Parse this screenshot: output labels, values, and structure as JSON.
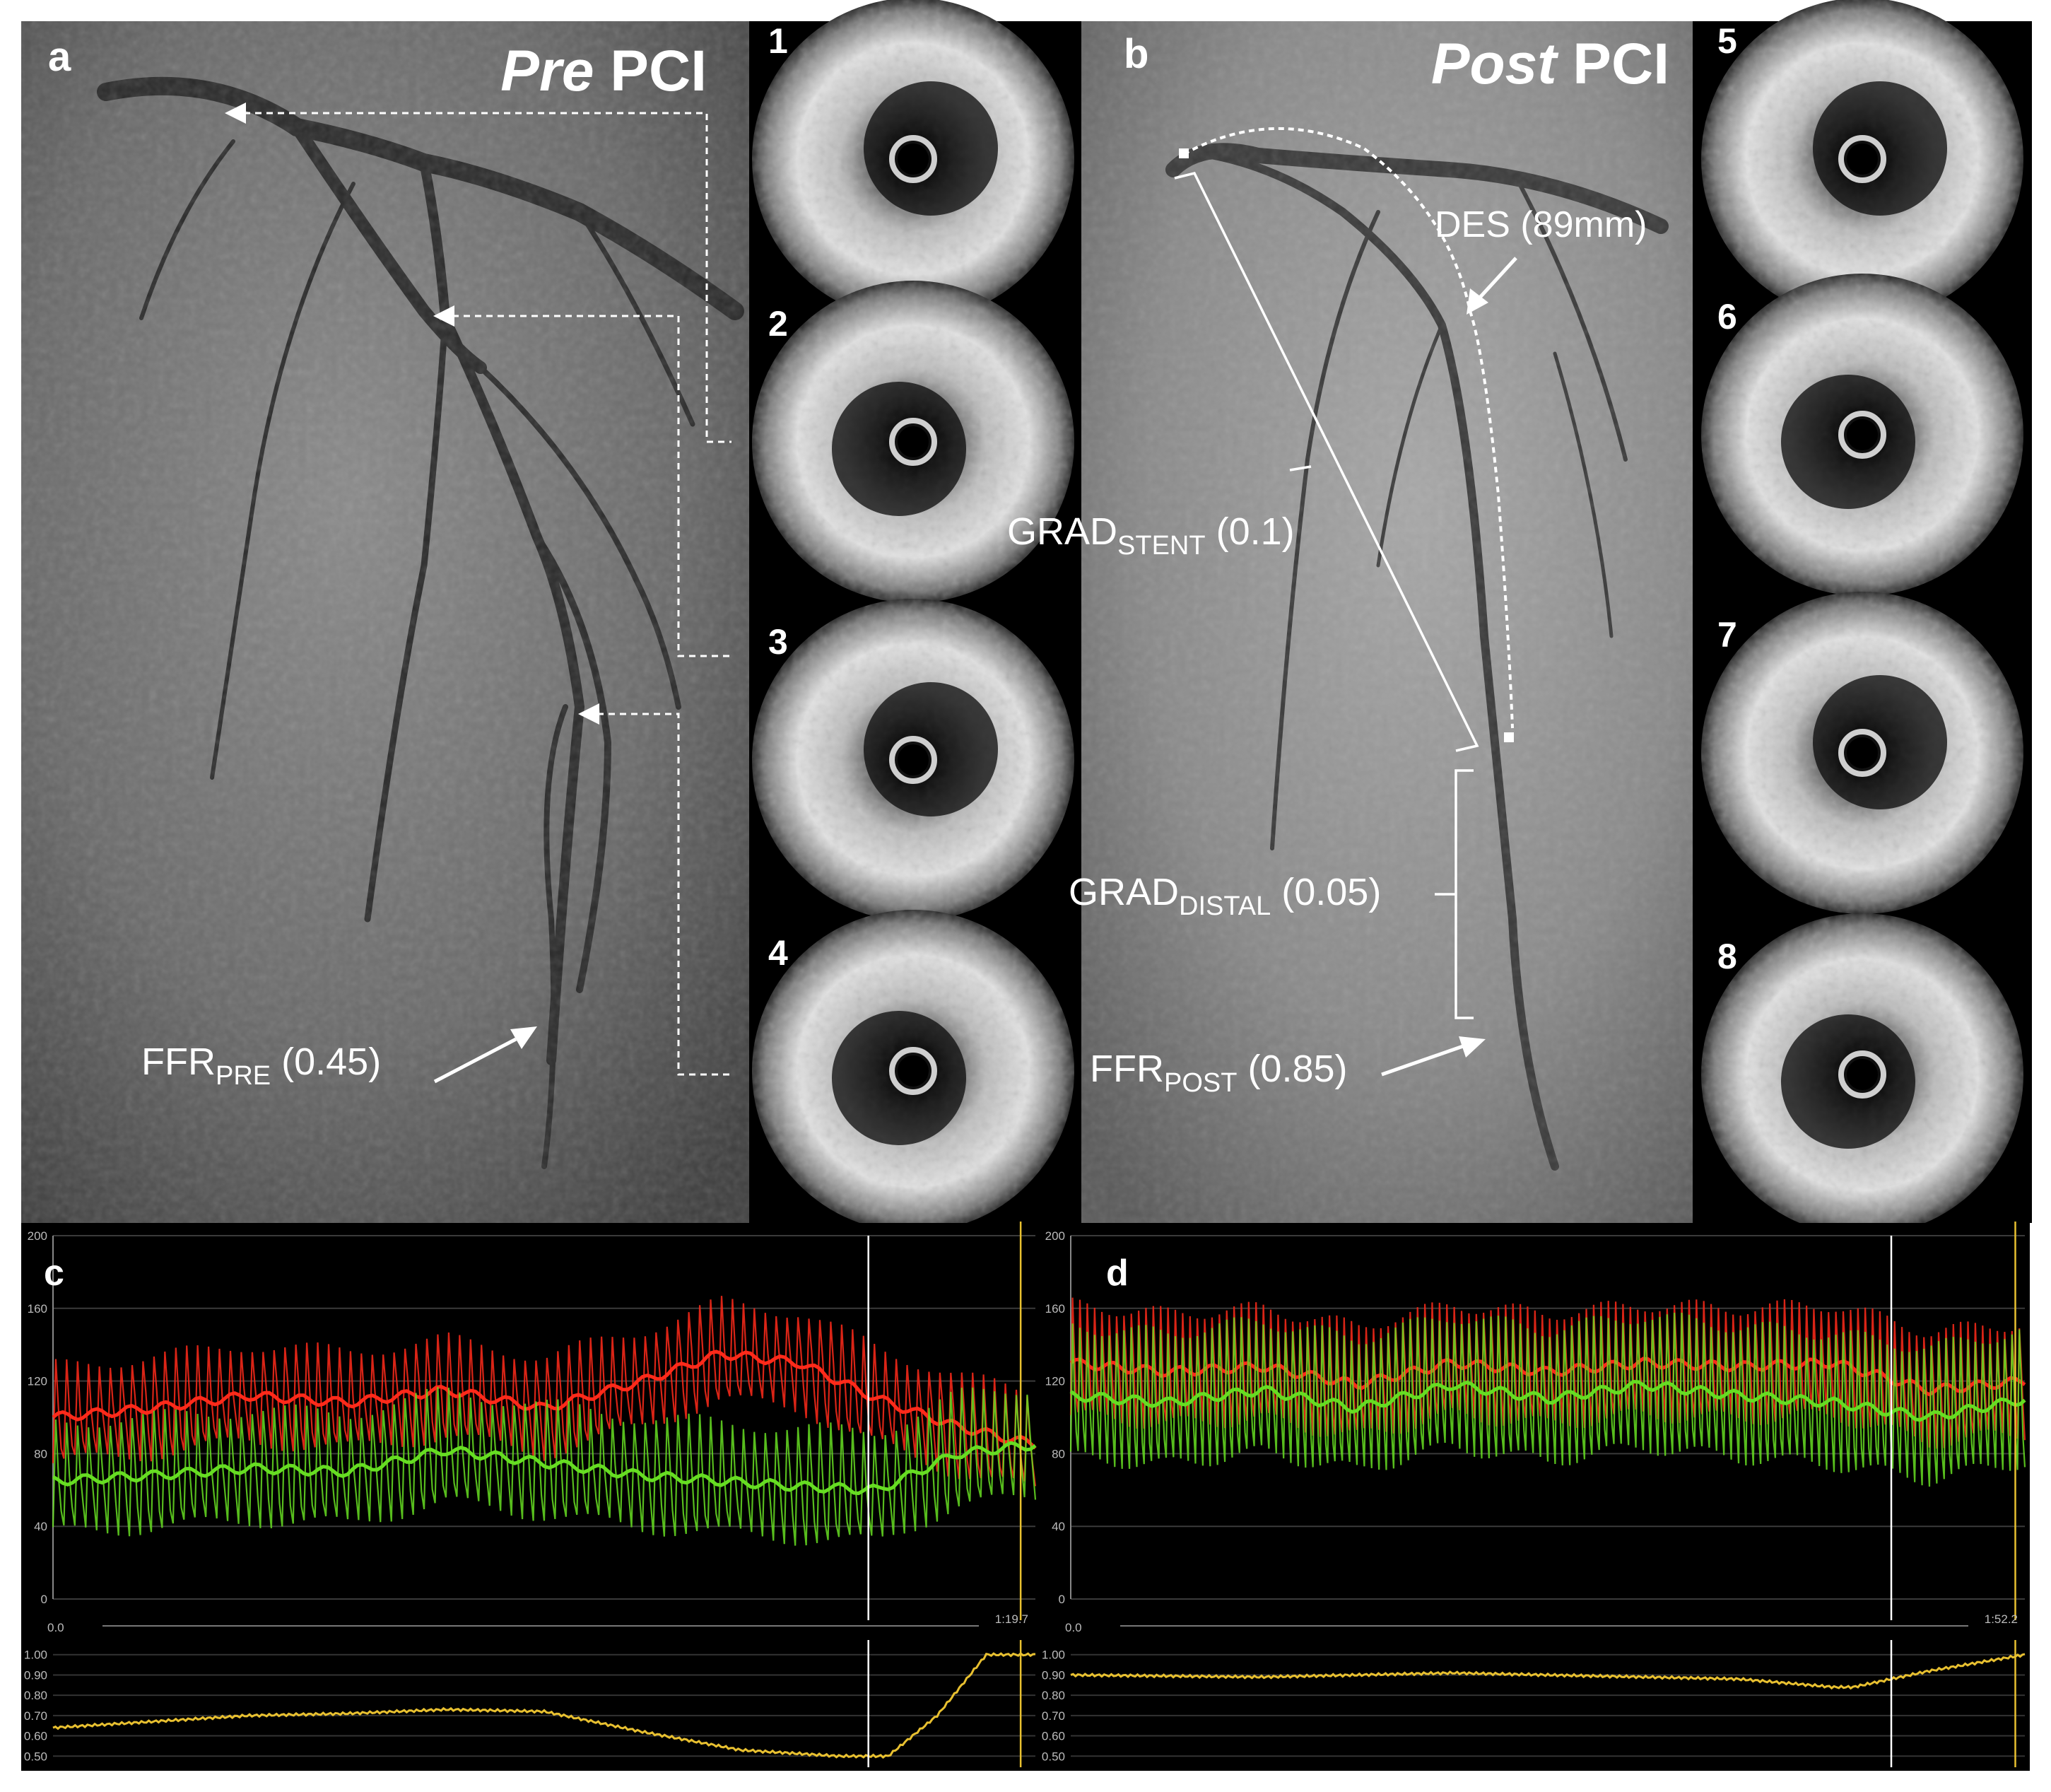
{
  "panels": {
    "a": {
      "letter": "a",
      "title_italic": "Pre",
      "title_rest": " PCI"
    },
    "b": {
      "letter": "b",
      "title_italic": "Post",
      "title_rest": " PCI"
    },
    "c": {
      "letter": "c"
    },
    "d": {
      "letter": "d"
    }
  },
  "ivus_labels": [
    "1",
    "2",
    "3",
    "4",
    "5",
    "6",
    "7",
    "8"
  ],
  "annotations": {
    "ffr_pre": {
      "main": "FFR",
      "sub": "PRE",
      "value": " (0.45)"
    },
    "ffr_post": {
      "main": "FFR",
      "sub": "POST",
      "value": " (0.85)"
    },
    "grad_stent": {
      "main": "GRAD",
      "sub": "STENT",
      "value": " (0.1)"
    },
    "grad_distal": {
      "main": "GRAD",
      "sub": "DISTAL",
      "value": " (0.05)"
    },
    "des": "DES (89mm)"
  },
  "colors": {
    "aortic_pressure": "#ff2a1a",
    "distal_pressure": "#66dd22",
    "ffr_trace": "#e8c030",
    "cursor": "#ffffff",
    "end_marker": "#e8c030",
    "background": "#000000"
  },
  "chart_data": [
    {
      "type": "line",
      "panel": "c",
      "y_ticks": [
        "200",
        "160",
        "120",
        "80",
        "40",
        "0"
      ],
      "ylim": [
        0,
        200
      ],
      "time_start": "0.0",
      "time_end": "1:19.7",
      "series": [
        {
          "color": "aortic",
          "x": [
            0,
            0.1,
            0.2,
            0.3,
            0.4,
            0.5,
            0.6,
            0.68,
            0.76,
            0.84,
            0.92,
            1.0
          ],
          "values": [
            100,
            105,
            112,
            108,
            115,
            105,
            120,
            135,
            130,
            110,
            95,
            85
          ]
        },
        {
          "color": "distal",
          "x": [
            0,
            0.1,
            0.2,
            0.3,
            0.4,
            0.5,
            0.6,
            0.68,
            0.76,
            0.84,
            0.92,
            1.0
          ],
          "values": [
            65,
            68,
            72,
            70,
            82,
            75,
            68,
            65,
            62,
            60,
            80,
            85
          ]
        }
      ],
      "ffr_y_ticks": [
        "1.00",
        "0.90",
        "0.80",
        "0.70",
        "0.60",
        "0.50"
      ],
      "ffr_ylim": [
        0.48,
        1.02
      ],
      "ffr": {
        "x": [
          0,
          0.1,
          0.2,
          0.3,
          0.4,
          0.5,
          0.6,
          0.7,
          0.8,
          0.85,
          0.9,
          0.95,
          1.0
        ],
        "values": [
          0.64,
          0.67,
          0.7,
          0.71,
          0.73,
          0.72,
          0.62,
          0.53,
          0.5,
          0.5,
          0.7,
          1.0,
          1.0
        ]
      }
    },
    {
      "type": "line",
      "panel": "d",
      "y_ticks": [
        "200",
        "160",
        "120",
        "80",
        "40",
        "0"
      ],
      "ylim": [
        0,
        200
      ],
      "time_start": "0.0",
      "time_end": "1:52.2",
      "series": [
        {
          "color": "aortic",
          "x": [
            0,
            0.1,
            0.2,
            0.3,
            0.4,
            0.5,
            0.6,
            0.7,
            0.8,
            0.9,
            1.0
          ],
          "values": [
            130,
            125,
            128,
            118,
            130,
            125,
            130,
            128,
            130,
            115,
            120
          ]
        },
        {
          "color": "distal",
          "x": [
            0,
            0.1,
            0.2,
            0.3,
            0.4,
            0.5,
            0.6,
            0.7,
            0.8,
            0.9,
            1.0
          ],
          "values": [
            112,
            108,
            115,
            105,
            118,
            110,
            118,
            112,
            108,
            100,
            110
          ]
        }
      ],
      "ffr_y_ticks": [
        "1.00",
        "0.90",
        "0.80",
        "0.70",
        "0.60",
        "0.50"
      ],
      "ffr_ylim": [
        0.48,
        1.02
      ],
      "ffr": {
        "x": [
          0,
          0.2,
          0.4,
          0.6,
          0.7,
          0.8,
          0.82,
          0.9,
          1.0
        ],
        "values": [
          0.9,
          0.89,
          0.91,
          0.89,
          0.88,
          0.84,
          0.84,
          0.92,
          1.0
        ]
      }
    }
  ]
}
